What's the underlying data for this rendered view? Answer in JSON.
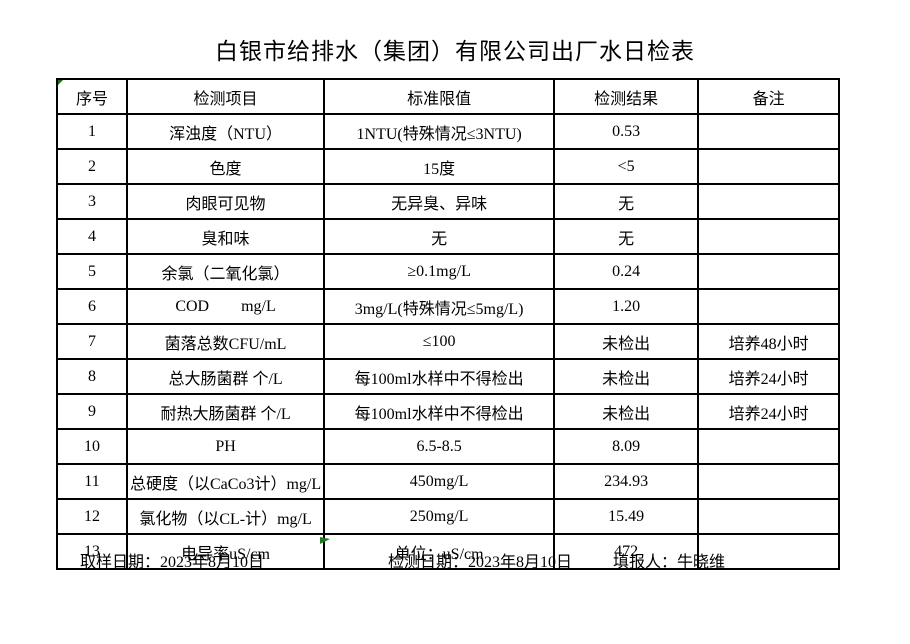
{
  "title": "白银市给排水（集团）有限公司出厂水日检表",
  "colors": {
    "table_border": "#000000",
    "text": "#000000",
    "marker_green": "#1b6e1b",
    "background": "#ffffff"
  },
  "icons": {
    "corner_flag": "green-corner-flag-icon",
    "arrow_marker": "green-arrow-marker-icon"
  },
  "table": {
    "headers": [
      "序号",
      "检测项目",
      "标准限值",
      "检测结果",
      "备注"
    ],
    "rows": [
      {
        "index": "1",
        "item": "浑浊度（NTU）",
        "standard": "1NTU(特殊情况≤3NTU)",
        "result": "0.53",
        "remark": ""
      },
      {
        "index": "2",
        "item": "色度",
        "standard": "15度",
        "result": "<5",
        "remark": ""
      },
      {
        "index": "3",
        "item": "肉眼可见物",
        "standard": "无异臭、异味",
        "result": "无",
        "remark": ""
      },
      {
        "index": "4",
        "item": "臭和味",
        "standard": "无",
        "result": "无",
        "remark": ""
      },
      {
        "index": "5",
        "item": "余氯（二氧化氯）",
        "standard": "≥0.1mg/L",
        "result": "0.24",
        "remark": ""
      },
      {
        "index": "6",
        "item": "COD        mg/L",
        "standard": "3mg/L(特殊情况≤5mg/L)",
        "result": "1.20",
        "remark": ""
      },
      {
        "index": "7",
        "item": "菌落总数CFU/mL",
        "standard": "≤100",
        "result": "未检出",
        "remark": "培养48小时"
      },
      {
        "index": "8",
        "item": "总大肠菌群 个/L",
        "standard": "每100ml水样中不得检出",
        "result": "未检出",
        "remark": "培养24小时"
      },
      {
        "index": "9",
        "item": "耐热大肠菌群 个/L",
        "standard": "每100ml水样中不得检出",
        "result": "未检出",
        "remark": "培养24小时"
      },
      {
        "index": "10",
        "item": "PH",
        "standard": "6.5-8.5",
        "result": "8.09",
        "remark": ""
      },
      {
        "index": "11",
        "item": "总硬度（以CaCo3计）mg/L",
        "standard": "450mg/L",
        "result": "234.93",
        "remark": ""
      },
      {
        "index": "12",
        "item": "氯化物（以CL-计）mg/L",
        "standard": "250mg/L",
        "result": "15.49",
        "remark": ""
      },
      {
        "index": "13",
        "item": "电导率uS/cm",
        "standard": "单位：uS/cm",
        "result": "472",
        "remark": ""
      }
    ]
  },
  "footer": {
    "sample_date": "取样日期：2023年8月10日",
    "test_date": "检测日期：2023年8月10日",
    "filler": "填报人：牛晓维"
  }
}
